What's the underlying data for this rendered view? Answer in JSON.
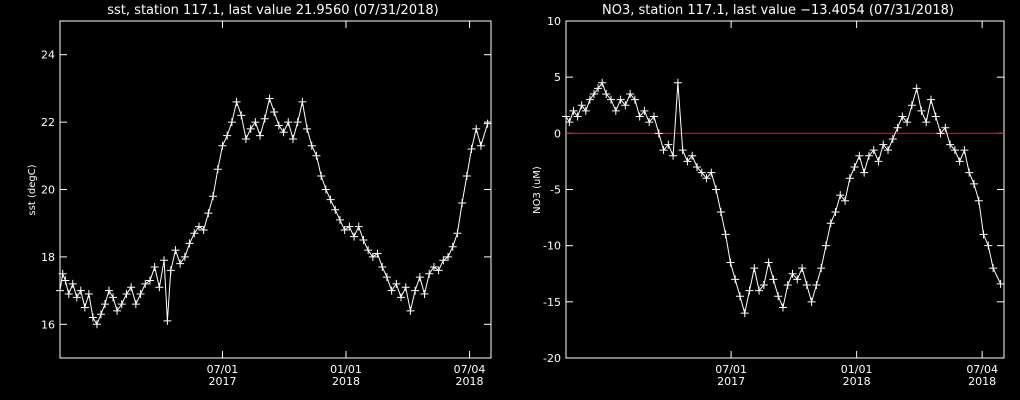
{
  "chart_data": [
    {
      "type": "line",
      "title": "sst, station 117.1, last value 21.9560 (07/31/2018)",
      "xlabel": "",
      "ylabel": "sst (degC)",
      "xlim": [
        "2016-11-01",
        "2018-08-05"
      ],
      "ylim": [
        15,
        25
      ],
      "grid": false,
      "x_ticks": [
        {
          "date": "2017-07-01",
          "line1": "07/01",
          "line2": "2017"
        },
        {
          "date": "2018-01-01",
          "line1": "01/01",
          "line2": "2018"
        },
        {
          "date": "2018-07-04",
          "line1": "07/04",
          "line2": "2018"
        }
      ],
      "y_ticks": [
        16,
        18,
        20,
        22,
        24
      ],
      "zero_line": null,
      "series": [
        {
          "color": "#ffffff",
          "marker": "plus",
          "points": [
            [
              "2016-11-01",
              17.0
            ],
            [
              "2016-11-05",
              17.5
            ],
            [
              "2016-11-09",
              17.3
            ],
            [
              "2016-11-14",
              16.9
            ],
            [
              "2016-11-20",
              17.2
            ],
            [
              "2016-11-26",
              16.8
            ],
            [
              "2016-12-02",
              17.0
            ],
            [
              "2016-12-08",
              16.5
            ],
            [
              "2016-12-14",
              16.9
            ],
            [
              "2016-12-20",
              16.2
            ],
            [
              "2016-12-26",
              16.0
            ],
            [
              "2017-01-01",
              16.3
            ],
            [
              "2017-01-07",
              16.6
            ],
            [
              "2017-01-13",
              17.0
            ],
            [
              "2017-01-19",
              16.8
            ],
            [
              "2017-01-25",
              16.4
            ],
            [
              "2017-02-01",
              16.6
            ],
            [
              "2017-02-08",
              16.9
            ],
            [
              "2017-02-15",
              17.1
            ],
            [
              "2017-02-22",
              16.6
            ],
            [
              "2017-03-01",
              16.9
            ],
            [
              "2017-03-08",
              17.2
            ],
            [
              "2017-03-15",
              17.3
            ],
            [
              "2017-03-22",
              17.7
            ],
            [
              "2017-03-29",
              17.1
            ],
            [
              "2017-04-05",
              17.9
            ],
            [
              "2017-04-10",
              16.1
            ],
            [
              "2017-04-15",
              17.6
            ],
            [
              "2017-04-22",
              18.2
            ],
            [
              "2017-04-29",
              17.8
            ],
            [
              "2017-05-06",
              18.0
            ],
            [
              "2017-05-13",
              18.4
            ],
            [
              "2017-05-20",
              18.7
            ],
            [
              "2017-05-27",
              18.9
            ],
            [
              "2017-06-03",
              18.8
            ],
            [
              "2017-06-10",
              19.3
            ],
            [
              "2017-06-17",
              19.8
            ],
            [
              "2017-06-24",
              20.6
            ],
            [
              "2017-07-01",
              21.3
            ],
            [
              "2017-07-08",
              21.6
            ],
            [
              "2017-07-15",
              22.0
            ],
            [
              "2017-07-22",
              22.6
            ],
            [
              "2017-07-29",
              22.2
            ],
            [
              "2017-08-05",
              21.5
            ],
            [
              "2017-08-12",
              21.8
            ],
            [
              "2017-08-19",
              22.0
            ],
            [
              "2017-08-26",
              21.6
            ],
            [
              "2017-09-02",
              22.1
            ],
            [
              "2017-09-09",
              22.7
            ],
            [
              "2017-09-16",
              22.3
            ],
            [
              "2017-09-23",
              21.9
            ],
            [
              "2017-09-30",
              21.7
            ],
            [
              "2017-10-07",
              22.0
            ],
            [
              "2017-10-14",
              21.5
            ],
            [
              "2017-10-21",
              22.0
            ],
            [
              "2017-10-28",
              22.6
            ],
            [
              "2017-11-04",
              21.8
            ],
            [
              "2017-11-11",
              21.3
            ],
            [
              "2017-11-18",
              21.0
            ],
            [
              "2017-11-25",
              20.4
            ],
            [
              "2017-12-02",
              20.0
            ],
            [
              "2017-12-09",
              19.7
            ],
            [
              "2017-12-16",
              19.4
            ],
            [
              "2017-12-23",
              19.1
            ],
            [
              "2017-12-30",
              18.8
            ],
            [
              "2018-01-06",
              18.9
            ],
            [
              "2018-01-13",
              18.6
            ],
            [
              "2018-01-20",
              18.9
            ],
            [
              "2018-01-27",
              18.5
            ],
            [
              "2018-02-03",
              18.2
            ],
            [
              "2018-02-10",
              18.0
            ],
            [
              "2018-02-17",
              18.1
            ],
            [
              "2018-02-24",
              17.7
            ],
            [
              "2018-03-03",
              17.4
            ],
            [
              "2018-03-10",
              17.0
            ],
            [
              "2018-03-17",
              17.2
            ],
            [
              "2018-03-24",
              16.8
            ],
            [
              "2018-03-31",
              17.1
            ],
            [
              "2018-04-07",
              16.4
            ],
            [
              "2018-04-14",
              17.0
            ],
            [
              "2018-04-21",
              17.4
            ],
            [
              "2018-04-28",
              16.9
            ],
            [
              "2018-05-05",
              17.5
            ],
            [
              "2018-05-12",
              17.7
            ],
            [
              "2018-05-19",
              17.6
            ],
            [
              "2018-05-26",
              17.9
            ],
            [
              "2018-06-02",
              18.0
            ],
            [
              "2018-06-09",
              18.3
            ],
            [
              "2018-06-16",
              18.7
            ],
            [
              "2018-06-23",
              19.6
            ],
            [
              "2018-06-30",
              20.4
            ],
            [
              "2018-07-07",
              21.2
            ],
            [
              "2018-07-14",
              21.8
            ],
            [
              "2018-07-21",
              21.3
            ],
            [
              "2018-07-31",
              21.956
            ]
          ]
        }
      ]
    },
    {
      "type": "line",
      "title": "NO3, station 117.1, last value −13.4054 (07/31/2018)",
      "xlabel": "",
      "ylabel": "NO3 (uM)",
      "xlim": [
        "2016-11-01",
        "2018-08-05"
      ],
      "ylim": [
        -20,
        10
      ],
      "grid": false,
      "x_ticks": [
        {
          "date": "2017-07-01",
          "line1": "07/01",
          "line2": "2017"
        },
        {
          "date": "2018-01-01",
          "line1": "01/01",
          "line2": "2018"
        },
        {
          "date": "2018-07-04",
          "line1": "07/04",
          "line2": "2018"
        }
      ],
      "y_ticks": [
        -20,
        -15,
        -10,
        -5,
        0,
        5,
        10
      ],
      "zero_line": {
        "y": 0,
        "color": "#ff0000"
      },
      "series": [
        {
          "color": "#ffffff",
          "marker": "plus",
          "points": [
            [
              "2016-11-01",
              1.5
            ],
            [
              "2016-11-06",
              1.0
            ],
            [
              "2016-11-12",
              2.0
            ],
            [
              "2016-11-18",
              1.5
            ],
            [
              "2016-11-24",
              2.5
            ],
            [
              "2016-11-30",
              2.0
            ],
            [
              "2016-12-06",
              3.0
            ],
            [
              "2016-12-12",
              3.5
            ],
            [
              "2016-12-18",
              4.0
            ],
            [
              "2016-12-24",
              4.5
            ],
            [
              "2016-12-30",
              3.5
            ],
            [
              "2017-01-06",
              3.0
            ],
            [
              "2017-01-13",
              2.0
            ],
            [
              "2017-01-20",
              3.0
            ],
            [
              "2017-01-27",
              2.5
            ],
            [
              "2017-02-03",
              3.5
            ],
            [
              "2017-02-10",
              3.0
            ],
            [
              "2017-02-17",
              1.5
            ],
            [
              "2017-02-24",
              2.0
            ],
            [
              "2017-03-03",
              1.0
            ],
            [
              "2017-03-10",
              1.5
            ],
            [
              "2017-03-17",
              0.0
            ],
            [
              "2017-03-24",
              -1.5
            ],
            [
              "2017-03-31",
              -1.0
            ],
            [
              "2017-04-07",
              -2.0
            ],
            [
              "2017-04-14",
              4.5
            ],
            [
              "2017-04-21",
              -1.5
            ],
            [
              "2017-04-28",
              -2.5
            ],
            [
              "2017-05-05",
              -2.0
            ],
            [
              "2017-05-12",
              -3.0
            ],
            [
              "2017-05-19",
              -3.5
            ],
            [
              "2017-05-26",
              -4.0
            ],
            [
              "2017-06-02",
              -3.5
            ],
            [
              "2017-06-09",
              -5.0
            ],
            [
              "2017-06-16",
              -7.0
            ],
            [
              "2017-06-23",
              -9.0
            ],
            [
              "2017-06-30",
              -11.5
            ],
            [
              "2017-07-07",
              -13.0
            ],
            [
              "2017-07-14",
              -14.5
            ],
            [
              "2017-07-21",
              -16.0
            ],
            [
              "2017-07-28",
              -14.0
            ],
            [
              "2017-08-04",
              -12.0
            ],
            [
              "2017-08-11",
              -14.0
            ],
            [
              "2017-08-18",
              -13.5
            ],
            [
              "2017-08-25",
              -11.5
            ],
            [
              "2017-09-01",
              -13.0
            ],
            [
              "2017-09-08",
              -14.5
            ],
            [
              "2017-09-15",
              -15.5
            ],
            [
              "2017-09-22",
              -13.5
            ],
            [
              "2017-09-29",
              -12.5
            ],
            [
              "2017-10-06",
              -13.0
            ],
            [
              "2017-10-13",
              -12.0
            ],
            [
              "2017-10-20",
              -13.5
            ],
            [
              "2017-10-27",
              -15.0
            ],
            [
              "2017-11-03",
              -13.5
            ],
            [
              "2017-11-10",
              -12.0
            ],
            [
              "2017-11-17",
              -10.0
            ],
            [
              "2017-11-24",
              -8.0
            ],
            [
              "2017-12-01",
              -7.0
            ],
            [
              "2017-12-08",
              -5.5
            ],
            [
              "2017-12-15",
              -6.0
            ],
            [
              "2017-12-22",
              -4.0
            ],
            [
              "2017-12-29",
              -3.0
            ],
            [
              "2018-01-05",
              -2.0
            ],
            [
              "2018-01-12",
              -3.5
            ],
            [
              "2018-01-19",
              -2.0
            ],
            [
              "2018-01-26",
              -1.5
            ],
            [
              "2018-02-02",
              -2.5
            ],
            [
              "2018-02-09",
              -1.0
            ],
            [
              "2018-02-16",
              -1.5
            ],
            [
              "2018-02-23",
              -0.5
            ],
            [
              "2018-03-02",
              0.5
            ],
            [
              "2018-03-09",
              1.5
            ],
            [
              "2018-03-16",
              1.0
            ],
            [
              "2018-03-23",
              2.5
            ],
            [
              "2018-03-30",
              4.0
            ],
            [
              "2018-04-06",
              2.0
            ],
            [
              "2018-04-13",
              1.0
            ],
            [
              "2018-04-20",
              3.0
            ],
            [
              "2018-04-27",
              1.5
            ],
            [
              "2018-05-04",
              0.0
            ],
            [
              "2018-05-11",
              0.5
            ],
            [
              "2018-05-18",
              -1.0
            ],
            [
              "2018-05-25",
              -1.5
            ],
            [
              "2018-06-01",
              -2.5
            ],
            [
              "2018-06-08",
              -1.5
            ],
            [
              "2018-06-15",
              -3.5
            ],
            [
              "2018-06-22",
              -4.5
            ],
            [
              "2018-06-29",
              -6.0
            ],
            [
              "2018-07-06",
              -9.0
            ],
            [
              "2018-07-13",
              -10.0
            ],
            [
              "2018-07-20",
              -12.0
            ],
            [
              "2018-07-31",
              -13.4054
            ]
          ]
        }
      ]
    }
  ]
}
